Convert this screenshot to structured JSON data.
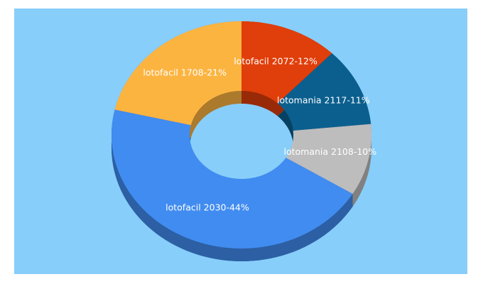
{
  "chart_data": {
    "type": "donut3d",
    "value_labels": [
      "lotofacil 2072-12%",
      "lotomania 2117-11%",
      "lotomania 2108-10%",
      "lotofacil 2030-44%",
      "lotofacil 1708-21%"
    ],
    "values": [
      12,
      11,
      10,
      44,
      21
    ],
    "colors": [
      "#e03e0a",
      "#0b5f8e",
      "#bdbdbd",
      "#418cf0",
      "#fcb441"
    ],
    "background": "#87cefa"
  }
}
